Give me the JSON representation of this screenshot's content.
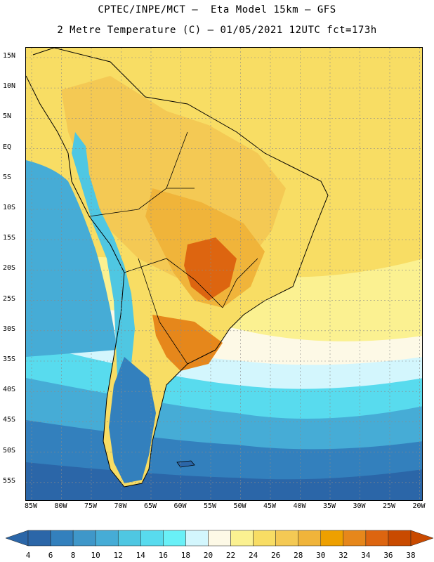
{
  "title_line1": "CPTEC/INPE/MCT –  Eta Model 15km – GFS",
  "title_line2": "2 Metre Temperature (C) – 01/05/2021 12UTC fct=173h",
  "lat_labels": [
    "15N",
    "10N",
    "5N",
    "EQ",
    "5S",
    "10S",
    "15S",
    "20S",
    "25S",
    "30S",
    "35S",
    "40S",
    "45S",
    "50S",
    "55S"
  ],
  "lon_labels": [
    "85W",
    "80W",
    "75W",
    "70W",
    "65W",
    "60W",
    "55W",
    "50W",
    "45W",
    "40W",
    "35W",
    "30W",
    "25W",
    "20W"
  ],
  "colorbar": {
    "ticks": [
      "4",
      "6",
      "8",
      "10",
      "12",
      "14",
      "16",
      "18",
      "20",
      "22",
      "24",
      "26",
      "28",
      "30",
      "32",
      "34",
      "36",
      "38"
    ],
    "colors": [
      "#2b66a8",
      "#3380bd",
      "#3f97c9",
      "#46acd6",
      "#4fc7e2",
      "#58dbee",
      "#69f0f7",
      "#d3f6fd",
      "#fdf9e6",
      "#fbf191",
      "#f8dd64",
      "#f4c954",
      "#f0b43a",
      "#eea000",
      "#e6871b",
      "#dd6510",
      "#c94a00"
    ],
    "under_color": "#2b66a8",
    "over_color": "#c94a00"
  },
  "map": {
    "ocean_colors": {
      "south_far": "#2b66a8",
      "south": "#3380bd",
      "mid": "#46acd6",
      "cool": "#58dbee",
      "pale": "#d3f6fd",
      "cream": "#fdf9e6",
      "warm": "#fbf191",
      "tropic": "#f8dd64"
    },
    "land_colors": {
      "andes": "#4fc7e2",
      "patagonia": "#3380bd",
      "south": "#f8dd64",
      "interior": "#f0b43a",
      "hot": "#e6871b",
      "hottest": "#dd6510",
      "north": "#f4c954"
    }
  }
}
